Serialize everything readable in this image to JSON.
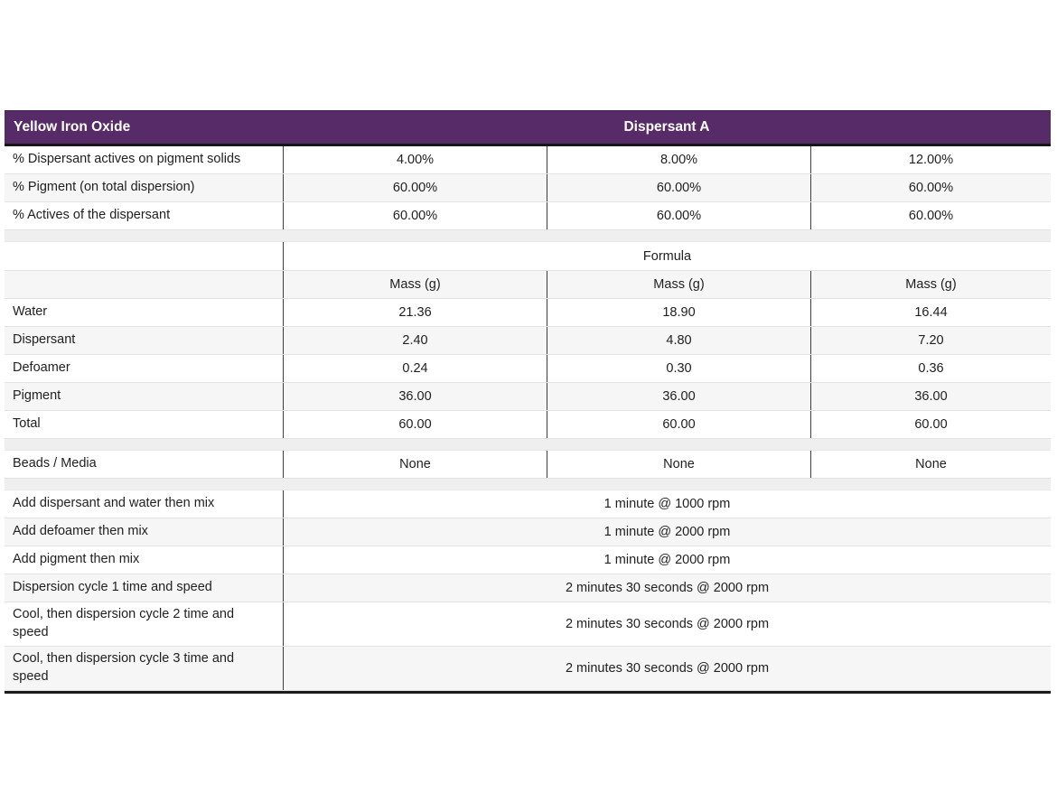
{
  "header": {
    "left_title": "Yellow Iron Oxide",
    "center_title": "Dispersant A"
  },
  "percent_rows": [
    {
      "label": "% Dispersant actives on pigment solids",
      "values": [
        "4.00%",
        "8.00%",
        "12.00%"
      ]
    },
    {
      "label": "% Pigment (on total dispersion)",
      "values": [
        "60.00%",
        "60.00%",
        "60.00%"
      ]
    },
    {
      "label": "% Actives of the dispersant",
      "values": [
        "60.00%",
        "60.00%",
        "60.00%"
      ]
    }
  ],
  "formula_section": {
    "title": "Formula",
    "mass_header": [
      "Mass (g)",
      "Mass (g)",
      "Mass (g)"
    ],
    "rows": [
      {
        "label": "Water",
        "values": [
          "21.36",
          "18.90",
          "16.44"
        ]
      },
      {
        "label": "Dispersant",
        "values": [
          "2.40",
          "4.80",
          "7.20"
        ]
      },
      {
        "label": "Defoamer",
        "values": [
          "0.24",
          "0.30",
          "0.36"
        ]
      },
      {
        "label": "Pigment",
        "values": [
          "36.00",
          "36.00",
          "36.00"
        ]
      },
      {
        "label": "Total",
        "values": [
          "60.00",
          "60.00",
          "60.00"
        ]
      }
    ]
  },
  "beads_row": {
    "label": "Beads / Media",
    "values": [
      "None",
      "None",
      "None"
    ]
  },
  "process_rows": [
    {
      "label": "Add dispersant and water then mix",
      "value": "1 minute @ 1000 rpm"
    },
    {
      "label": "Add defoamer then mix",
      "value": "1 minute @ 2000 rpm"
    },
    {
      "label": "Add pigment then mix",
      "value": "1 minute @ 2000 rpm"
    },
    {
      "label": "Dispersion cycle 1 time and speed",
      "value": "2 minutes 30 seconds @ 2000 rpm"
    },
    {
      "label": "Cool, then dispersion cycle 2 time and speed",
      "value": "2 minutes 30 seconds @ 2000 rpm"
    },
    {
      "label": "Cool, then dispersion cycle 3 time and speed",
      "value": "2 minutes 30 seconds @ 2000 rpm"
    }
  ],
  "colors": {
    "header_bg": "#572b67",
    "header_text": "#ffffff",
    "row_alt_bg": "#f6f6f6",
    "divider_dark": "#3d3d3d",
    "row_border": "#e3e3e3",
    "bottom_border": "#1d1d1d"
  }
}
